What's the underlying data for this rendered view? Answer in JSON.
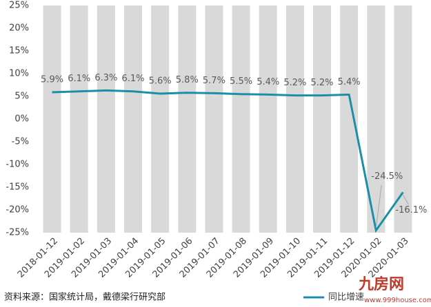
{
  "chart_data": {
    "type": "line",
    "categories": [
      "2018-01-12",
      "2019-01-02",
      "2019-01-03",
      "2019-01-04",
      "2019-01-05",
      "2019-01-06",
      "2019-01-07",
      "2019-01-08",
      "2019-01-09",
      "2019-01-10",
      "2019-01-11",
      "2019-01-12",
      "2020-01-02",
      "2020-01-03"
    ],
    "series": [
      {
        "name": "同比增速",
        "color": "#1b8ea8",
        "values": [
          5.9,
          6.1,
          6.3,
          6.1,
          5.6,
          5.8,
          5.7,
          5.5,
          5.4,
          5.2,
          5.2,
          5.4,
          -24.5,
          -16.1
        ],
        "value_labels": [
          "5.9%",
          "6.1%",
          "6.3%",
          "6.1%",
          "5.6%",
          "5.8%",
          "5.7%",
          "5.5%",
          "5.4%",
          "5.2%",
          "5.2%",
          "5.4%",
          "-24.5%",
          "-16.1%"
        ]
      }
    ],
    "ylim": [
      -25,
      25
    ],
    "yticks": [
      {
        "value": -25,
        "label": "-25%"
      },
      {
        "value": -20,
        "label": "-20%"
      },
      {
        "value": -15,
        "label": "-15%"
      },
      {
        "value": -10,
        "label": "-10%"
      },
      {
        "value": -5,
        "label": "-5%"
      },
      {
        "value": 0,
        "label": "0%"
      },
      {
        "value": 5,
        "label": "5%"
      },
      {
        "value": 10,
        "label": "10%"
      },
      {
        "value": 15,
        "label": "15%"
      },
      {
        "value": 20,
        "label": "20%"
      },
      {
        "value": 25,
        "label": "25%"
      }
    ],
    "band_color": "#d9d9d9",
    "legend": "bottom-right",
    "source": "资料来源：国家统计局，戴德梁行研究部",
    "watermark": "九房网",
    "watermark_url": "www.999house.com"
  }
}
